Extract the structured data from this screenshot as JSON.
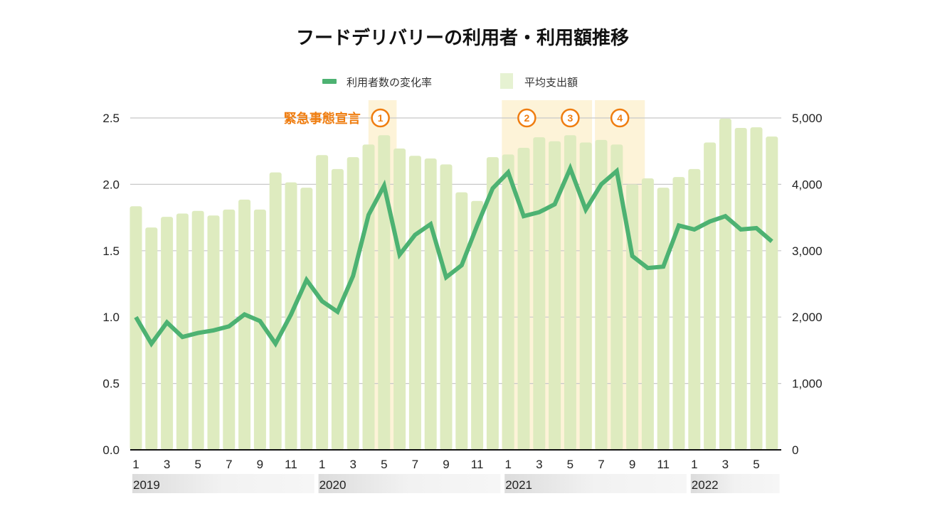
{
  "chart_data": {
    "type": "bar+line",
    "title": "フードデリバリーの利用者・利用額推移",
    "legend": {
      "position": "top",
      "entries": [
        {
          "name": "利用者数の変化率",
          "kind": "line",
          "color": "#4db272"
        },
        {
          "name": "平均支出額",
          "kind": "bar",
          "color": "#deebbf"
        }
      ]
    },
    "left_axis": {
      "ylim": [
        0,
        2.5
      ],
      "ticks": [
        "0.0",
        "0.5",
        "1.0",
        "1.5",
        "2.0",
        "2.5"
      ]
    },
    "right_axis": {
      "ylim": [
        0,
        5000
      ],
      "ticks": [
        "0",
        "1,000",
        "2,000",
        "3,000",
        "4,000",
        "5,000"
      ]
    },
    "months": [
      1,
      2,
      3,
      4,
      5,
      6,
      7,
      8,
      9,
      10,
      11,
      12,
      1,
      2,
      3,
      4,
      5,
      6,
      7,
      8,
      9,
      10,
      11,
      12,
      1,
      2,
      3,
      4,
      5,
      6,
      7,
      8,
      9,
      10,
      11,
      12,
      1,
      2,
      3,
      4,
      5,
      6
    ],
    "month_tick_labels": [
      "1",
      "3",
      "5",
      "7",
      "9",
      "11",
      "1",
      "3",
      "5",
      "7",
      "9",
      "11",
      "1",
      "3",
      "5",
      "7",
      "9",
      "11",
      "1",
      "3",
      "5"
    ],
    "years": [
      {
        "label": "2019",
        "start_index": 0,
        "end_index": 11
      },
      {
        "label": "2020",
        "start_index": 12,
        "end_index": 23
      },
      {
        "label": "2021",
        "start_index": 24,
        "end_index": 35
      },
      {
        "label": "2022",
        "start_index": 36,
        "end_index": 41
      }
    ],
    "series": [
      {
        "name": "平均支出額",
        "axis": "right",
        "type": "bar",
        "values": [
          3670,
          3350,
          3510,
          3560,
          3600,
          3530,
          3620,
          3770,
          3620,
          4180,
          4030,
          3950,
          4440,
          4230,
          4410,
          4600,
          4740,
          4540,
          4430,
          4390,
          4300,
          3880,
          3750,
          4410,
          4450,
          4550,
          4710,
          4650,
          4740,
          4630,
          4670,
          4600,
          4000,
          4090,
          3950,
          4110,
          4230,
          4630,
          4990,
          4850,
          4860,
          4720
        ]
      },
      {
        "name": "利用者数の変化率",
        "axis": "left",
        "type": "line",
        "values": [
          1.0,
          0.8,
          0.96,
          0.85,
          0.88,
          0.9,
          0.93,
          1.02,
          0.97,
          0.8,
          1.02,
          1.28,
          1.12,
          1.04,
          1.31,
          1.77,
          1.99,
          1.47,
          1.62,
          1.7,
          1.3,
          1.39,
          1.69,
          1.97,
          2.09,
          1.76,
          1.79,
          1.85,
          2.12,
          1.81,
          2.0,
          2.1,
          1.46,
          1.37,
          1.38,
          1.69,
          1.66,
          1.72,
          1.76,
          1.66,
          1.67,
          1.57
        ]
      }
    ],
    "annotations": {
      "label": "緊急事態宣言",
      "periods": [
        {
          "badge": "1",
          "start_index": 15.4,
          "end_index": 16.4
        },
        {
          "badge": "2",
          "start_index": 24.0,
          "end_index": 26.4
        },
        {
          "badge": "3",
          "start_index": 27.0,
          "end_index": 29.0
        },
        {
          "badge": "4",
          "start_index": 30.0,
          "end_index": 32.4
        }
      ],
      "color": "#ef7d10",
      "band_color": "#fdf3d8"
    },
    "grid": true
  }
}
